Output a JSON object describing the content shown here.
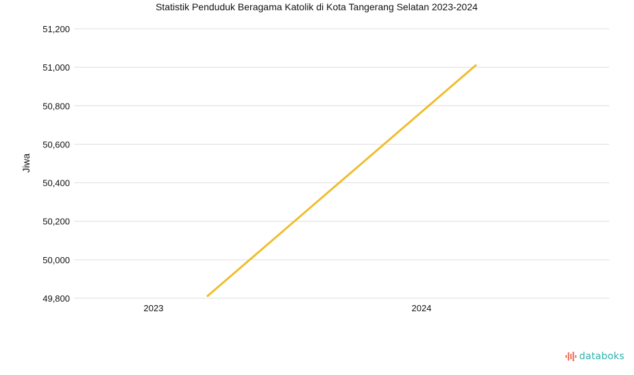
{
  "brand": {
    "name": "databoks",
    "icon": "databoks-logo-icon"
  },
  "chart_data": {
    "type": "line",
    "title": "Statistik Penduduk Beragama Katolik di Kota Tangerang Selatan 2023-2024",
    "xlabel": "",
    "ylabel": "Jiwa",
    "categories": [
      "2023",
      "2024"
    ],
    "series": [
      {
        "values": [
          49812,
          51010
        ],
        "color": "#f0bd2c"
      }
    ],
    "ylim": [
      49800,
      51200
    ],
    "yticks": [
      49800,
      50000,
      50200,
      50400,
      50600,
      50800,
      51000,
      51200
    ],
    "ytick_labels": [
      "49,800",
      "50,000",
      "50,200",
      "50,400",
      "50,600",
      "50,800",
      "51,000",
      "51,200"
    ],
    "grid": true,
    "legend": "none"
  }
}
